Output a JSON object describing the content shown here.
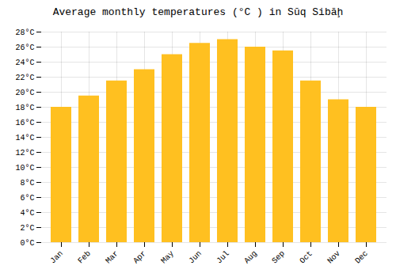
{
  "chart_data": {
    "type": "bar",
    "title": "Average monthly temperatures (°C ) in Sūq Sibāḩ",
    "categories": [
      "Jan",
      "Feb",
      "Mar",
      "Apr",
      "May",
      "Jun",
      "Jul",
      "Aug",
      "Sep",
      "Oct",
      "Nov",
      "Dec"
    ],
    "values": [
      18,
      19.5,
      21.5,
      23,
      25,
      26.5,
      27,
      26,
      25.5,
      21.5,
      19,
      18
    ],
    "color": "#FFC020",
    "ylim": [
      0,
      28
    ],
    "yticks": [
      {
        "value": 0,
        "label": "0°C"
      },
      {
        "value": 2,
        "label": "2°C"
      },
      {
        "value": 4,
        "label": "4°C"
      },
      {
        "value": 6,
        "label": "6°C"
      },
      {
        "value": 8,
        "label": "8°C"
      },
      {
        "value": 10,
        "label": "10°C"
      },
      {
        "value": 12,
        "label": "12°C"
      },
      {
        "value": 14,
        "label": "14°C"
      },
      {
        "value": 16,
        "label": "16°C"
      },
      {
        "value": 18,
        "label": "18°C"
      },
      {
        "value": 20,
        "label": "20°C"
      },
      {
        "value": 22,
        "label": "22°C"
      },
      {
        "value": 24,
        "label": "24°C"
      },
      {
        "value": 26,
        "label": "26°C"
      },
      {
        "value": 28,
        "label": "28°C"
      }
    ],
    "grid": true
  }
}
